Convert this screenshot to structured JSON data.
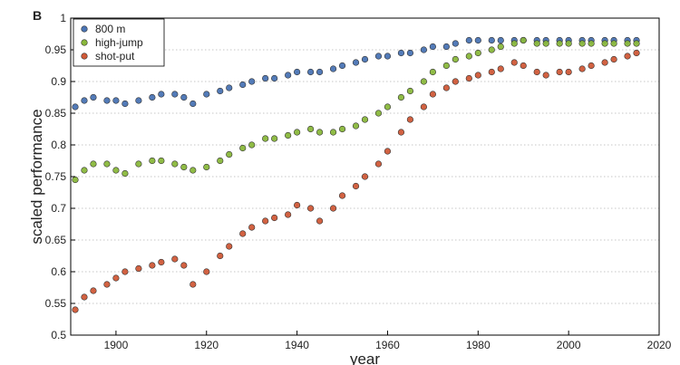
{
  "panel_label": "B",
  "chart_data": {
    "type": "scatter",
    "title": "",
    "xlabel": "year",
    "ylabel": "scaled performance",
    "xlim": [
      1890,
      2020
    ],
    "ylim": [
      0.5,
      1.0
    ],
    "xticks": [
      1900,
      1920,
      1940,
      1960,
      1980,
      2000,
      2020
    ],
    "yticks": [
      0.5,
      0.55,
      0.6,
      0.65,
      0.7,
      0.75,
      0.8,
      0.85,
      0.9,
      0.95,
      1
    ],
    "xtick_labels": [
      "1900",
      "1920",
      "1940",
      "1960",
      "1980",
      "2000",
      "2020"
    ],
    "ytick_labels": [
      "0.5",
      "0.55",
      "0.6",
      "0.65",
      "0.7",
      "0.75",
      "0.8",
      "0.85",
      "0.9",
      "0.95",
      "1"
    ],
    "grid": "horizontal-dotted",
    "legend_position": "top-left",
    "series": [
      {
        "name": "800 m",
        "color": "#4a74b4",
        "x": [
          1891,
          1893,
          1895,
          1898,
          1900,
          1902,
          1905,
          1908,
          1910,
          1913,
          1915,
          1917,
          1920,
          1923,
          1925,
          1928,
          1930,
          1933,
          1935,
          1938,
          1940,
          1943,
          1945,
          1948,
          1950,
          1953,
          1955,
          1958,
          1960,
          1963,
          1965,
          1968,
          1970,
          1973,
          1975,
          1978,
          1980,
          1983,
          1985,
          1988,
          1990,
          1993,
          1995,
          1998,
          2000,
          2003,
          2005,
          2008,
          2010,
          2013,
          2015
        ],
        "y": [
          0.86,
          0.87,
          0.875,
          0.87,
          0.87,
          0.865,
          0.87,
          0.875,
          0.88,
          0.88,
          0.875,
          0.865,
          0.88,
          0.885,
          0.89,
          0.895,
          0.9,
          0.905,
          0.905,
          0.91,
          0.915,
          0.915,
          0.915,
          0.92,
          0.925,
          0.93,
          0.935,
          0.94,
          0.94,
          0.945,
          0.945,
          0.95,
          0.955,
          0.955,
          0.96,
          0.965,
          0.965,
          0.965,
          0.965,
          0.965,
          0.965,
          0.965,
          0.965,
          0.965,
          0.965,
          0.965,
          0.965,
          0.965,
          0.965,
          0.965,
          0.965
        ]
      },
      {
        "name": "high-jump",
        "color": "#8ab83c",
        "x": [
          1891,
          1893,
          1895,
          1898,
          1900,
          1902,
          1905,
          1908,
          1910,
          1913,
          1915,
          1917,
          1920,
          1923,
          1925,
          1928,
          1930,
          1933,
          1935,
          1938,
          1940,
          1943,
          1945,
          1948,
          1950,
          1953,
          1955,
          1958,
          1960,
          1963,
          1965,
          1968,
          1970,
          1973,
          1975,
          1978,
          1980,
          1983,
          1985,
          1988,
          1990,
          1993,
          1995,
          1998,
          2000,
          2003,
          2005,
          2008,
          2010,
          2013,
          2015
        ],
        "y": [
          0.745,
          0.76,
          0.77,
          0.77,
          0.76,
          0.755,
          0.77,
          0.775,
          0.775,
          0.77,
          0.765,
          0.76,
          0.765,
          0.775,
          0.785,
          0.795,
          0.8,
          0.81,
          0.81,
          0.815,
          0.82,
          0.825,
          0.82,
          0.82,
          0.825,
          0.83,
          0.84,
          0.85,
          0.86,
          0.875,
          0.885,
          0.9,
          0.915,
          0.925,
          0.935,
          0.94,
          0.945,
          0.95,
          0.955,
          0.96,
          0.965,
          0.96,
          0.96,
          0.96,
          0.96,
          0.96,
          0.96,
          0.96,
          0.96,
          0.96,
          0.96
        ]
      },
      {
        "name": "shot-put",
        "color": "#d05a38",
        "x": [
          1891,
          1893,
          1895,
          1898,
          1900,
          1902,
          1905,
          1908,
          1910,
          1913,
          1915,
          1917,
          1920,
          1923,
          1925,
          1928,
          1930,
          1933,
          1935,
          1938,
          1940,
          1943,
          1945,
          1948,
          1950,
          1953,
          1955,
          1958,
          1960,
          1963,
          1965,
          1968,
          1970,
          1973,
          1975,
          1978,
          1980,
          1983,
          1985,
          1988,
          1990,
          1993,
          1995,
          1998,
          2000,
          2003,
          2005,
          2008,
          2010,
          2013,
          2015
        ],
        "y": [
          0.54,
          0.56,
          0.57,
          0.58,
          0.59,
          0.6,
          0.605,
          0.61,
          0.615,
          0.62,
          0.61,
          0.58,
          0.6,
          0.625,
          0.64,
          0.66,
          0.67,
          0.68,
          0.685,
          0.69,
          0.705,
          0.7,
          0.68,
          0.7,
          0.72,
          0.735,
          0.75,
          0.77,
          0.79,
          0.82,
          0.84,
          0.86,
          0.88,
          0.89,
          0.9,
          0.905,
          0.91,
          0.915,
          0.92,
          0.93,
          0.925,
          0.915,
          0.91,
          0.915,
          0.915,
          0.92,
          0.925,
          0.93,
          0.935,
          0.94,
          0.945
        ]
      }
    ]
  }
}
